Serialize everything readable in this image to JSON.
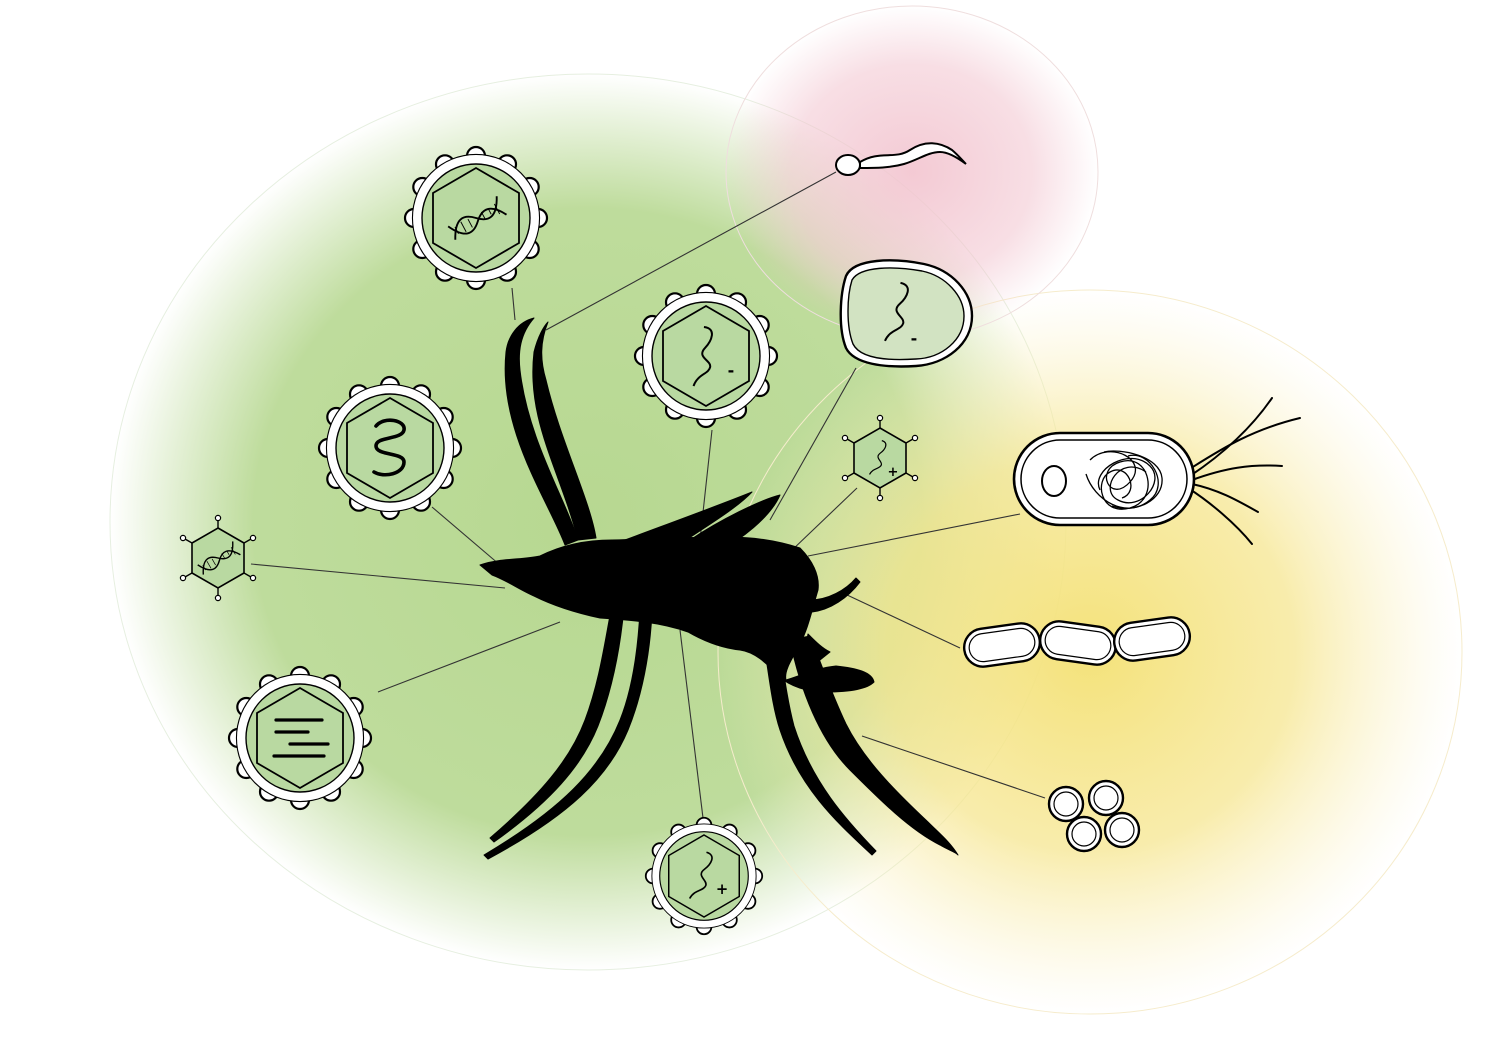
{
  "colors": {
    "virus_zone": "#b7d891",
    "protozoa_zone": "#f2c4cf",
    "bacteria_zone": "#f5e27a",
    "icon_fill": "#b9d9a1",
    "silhouette": "#000000",
    "connector": "#333333"
  },
  "zones": [
    {
      "name": "virus-zone",
      "color_key": "virus_zone"
    },
    {
      "name": "protozoa-zone",
      "color_key": "protozoa_zone"
    },
    {
      "name": "bacteria-zone",
      "color_key": "bacteria_zone"
    }
  ],
  "central": {
    "icon": "mosquito-silhouette-icon"
  },
  "icons": [
    {
      "name": "dsdna-enveloped-virus-icon",
      "kind": "virus-dna"
    },
    {
      "name": "ssrna-negative-enveloped-virus-icon",
      "kind": "virus-rna",
      "sign": "-"
    },
    {
      "name": "ssrna-negative-nonenveloped-virus-icon",
      "kind": "virus-rna",
      "sign": "-"
    },
    {
      "name": "ssrna-positive-nonenveloped-virus-icon",
      "kind": "virus-rna",
      "sign": "+"
    },
    {
      "name": "dsrna-enveloped-virus-icon",
      "kind": "virus-coil"
    },
    {
      "name": "dsdna-nonenveloped-virus-icon",
      "kind": "virus-dna"
    },
    {
      "name": "segmented-dsrna-enveloped-virus-icon",
      "kind": "virus-segments"
    },
    {
      "name": "ssrna-positive-enveloped-virus-icon",
      "kind": "virus-rna",
      "sign": "+"
    },
    {
      "name": "protozoan-parasite-icon",
      "kind": "protozoa"
    },
    {
      "name": "flagellated-bacterium-icon",
      "kind": "bacteria-flagellated"
    },
    {
      "name": "streptobacilli-icon",
      "kind": "bacteria-chain"
    },
    {
      "name": "staphylococci-icon",
      "kind": "bacteria-cocci"
    }
  ]
}
